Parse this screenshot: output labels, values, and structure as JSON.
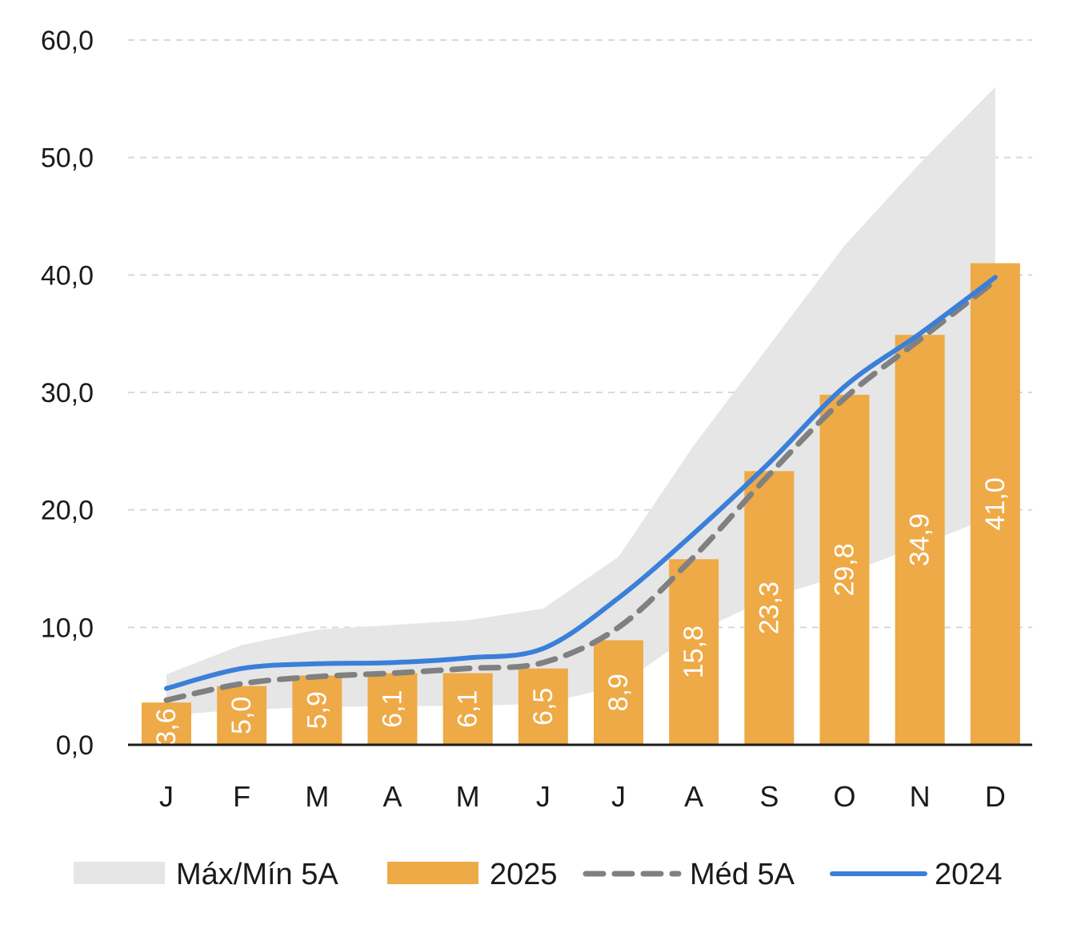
{
  "colors": {
    "band": "#e6e6e6",
    "bars": "#eeaa47",
    "median": "#808080",
    "line_2024": "#3a7fd9",
    "grid": "#d9d9d9",
    "axis": "#1a1a1a"
  },
  "legend": {
    "band_label": "Máx/Mín 5A",
    "bars_label": "2025",
    "median_label": "Méd 5A",
    "line_label": "2024"
  },
  "chart_data": {
    "type": "bar",
    "categories": [
      "J",
      "F",
      "M",
      "A",
      "M",
      "J",
      "J",
      "A",
      "S",
      "O",
      "N",
      "D"
    ],
    "ylim": [
      0,
      60
    ],
    "yticks": [
      "0,0",
      "10,0",
      "20,0",
      "30,0",
      "40,0",
      "50,0",
      "60,0"
    ],
    "grid": "horizontal dashed",
    "legend_position": "bottom",
    "series": [
      {
        "name": "2025",
        "type": "bar",
        "values": [
          3.6,
          5.0,
          5.9,
          6.1,
          6.1,
          6.5,
          8.9,
          15.8,
          23.3,
          29.8,
          34.9,
          41.0
        ],
        "labels": [
          "3,6",
          "5,0",
          "5,9",
          "6,1",
          "6,1",
          "6,5",
          "8,9",
          "15,8",
          "23,3",
          "29,8",
          "34,9",
          "41,0"
        ]
      },
      {
        "name": "Máx/Mín 5A",
        "type": "area-band",
        "max": [
          6.0,
          8.5,
          9.8,
          10.2,
          10.6,
          11.6,
          16.0,
          25.5,
          34.0,
          42.5,
          49.5,
          56.0
        ],
        "min": [
          2.5,
          3.0,
          3.2,
          3.3,
          3.3,
          3.5,
          5.0,
          9.5,
          12.5,
          14.5,
          17.0,
          19.5
        ]
      },
      {
        "name": "Méd 5A",
        "type": "line-dashed",
        "values": [
          3.8,
          5.2,
          5.8,
          6.1,
          6.5,
          7.0,
          10.0,
          16.0,
          23.0,
          29.5,
          34.5,
          39.5
        ]
      },
      {
        "name": "2024",
        "type": "line",
        "values": [
          4.8,
          6.5,
          6.9,
          7.0,
          7.4,
          8.2,
          12.5,
          18.0,
          24.0,
          30.5,
          35.0,
          39.8
        ]
      }
    ]
  }
}
